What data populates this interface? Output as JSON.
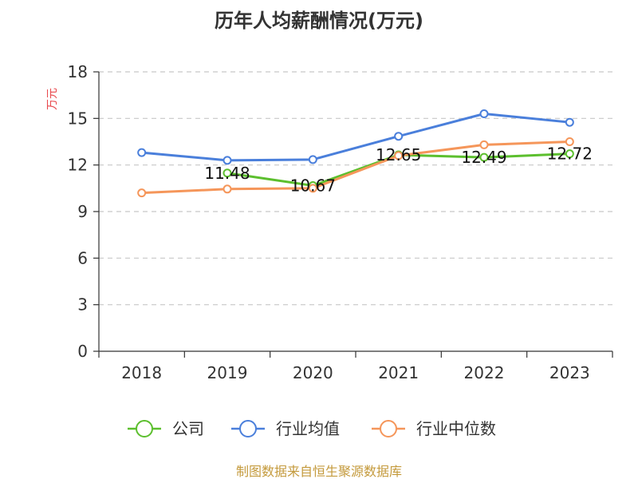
{
  "chart_data": {
    "type": "line",
    "title": "历年人均薪酬情况(万元)",
    "ylabel": "万元",
    "xlabel": "",
    "categories": [
      "2018",
      "2019",
      "2020",
      "2021",
      "2022",
      "2023"
    ],
    "ylim": [
      0,
      18
    ],
    "yticks": [
      0,
      3,
      6,
      9,
      12,
      15,
      18
    ],
    "grid": true,
    "legend_position": "bottom",
    "series": [
      {
        "name": "公司",
        "color": "#5cbf2e",
        "values": [
          null,
          11.48,
          10.67,
          12.65,
          12.49,
          12.72
        ],
        "labels": [
          null,
          "11.48",
          "10.67",
          "12.65",
          "12.49",
          "12.72"
        ]
      },
      {
        "name": "行业均值",
        "color": "#4a7fdb",
        "values": [
          12.8,
          12.3,
          12.35,
          13.85,
          15.3,
          14.75
        ]
      },
      {
        "name": "行业中位数",
        "color": "#f5965a",
        "values": [
          10.2,
          10.45,
          10.5,
          12.6,
          13.3,
          13.5
        ]
      }
    ]
  },
  "source": "制图数据来自恒生聚源数据库"
}
